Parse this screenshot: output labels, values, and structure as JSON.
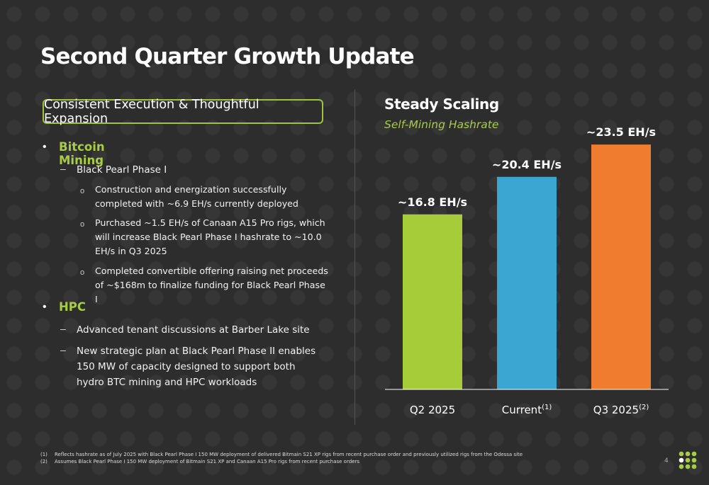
{
  "slide": {
    "title": "Second Quarter Growth Update",
    "section_heading": "Consistent Execution & Thoughtful Expansion",
    "page_number": "4"
  },
  "left_column": {
    "groups": [
      {
        "heading": "Bitcoin Mining",
        "items": [
          {
            "label": "Black Pearl Phase I",
            "subitems": [
              "Construction and energization successfully completed with ~6.9 EH/s currently deployed",
              "Purchased ~1.5 EH/s of Canaan A15 Pro rigs, which will increase Black Pearl Phase I hashrate to ~10.0 EH/s in Q3 2025",
              "Completed convertible offering raising net proceeds of ~$168m to finalize funding for Black Pearl Phase I"
            ]
          }
        ]
      },
      {
        "heading": "HPC",
        "items": [
          {
            "label": "Advanced tenant discussions at Barber Lake site",
            "subitems": []
          },
          {
            "label": "New strategic plan at Black Pearl Phase II enables 150 MW of capacity designed to support both hydro BTC mining and HPC workloads",
            "subitems": []
          }
        ]
      }
    ]
  },
  "chart_data": {
    "type": "bar",
    "title": "Steady Scaling",
    "subtitle": "Self-Mining Hashrate",
    "categories": [
      "Q2 2025",
      "Current",
      "Q3 2025"
    ],
    "category_footnote_marks": [
      "",
      "(1)",
      "(2)"
    ],
    "values": [
      16.8,
      20.4,
      23.5
    ],
    "data_labels": [
      "~16.8 EH/s",
      "~20.4 EH/s",
      "~23.5 EH/s"
    ],
    "colors": [
      "#a6cc39",
      "#3ba6d1",
      "#ef7c2f"
    ],
    "xlabel": "",
    "ylabel": "",
    "ylim": [
      0,
      26.5
    ],
    "grid": false,
    "legend": "none"
  },
  "footnotes": [
    {
      "mark": "(1)",
      "text": "Reflects hashrate as of July 2025 with Black Pearl Phase I 150 MW deployment of delivered Bitmain S21 XP rigs from recent purchase order and previously utilized rigs from the Odessa site"
    },
    {
      "mark": "(2)",
      "text": "Assumes Black Pearl Phase I 150 MW deployment of Bitmain S21 XP and Canaan A15 Pro rigs from recent purchase orders"
    }
  ],
  "colors": {
    "accent_green": "#a8cc44",
    "background": "#2d2d2d"
  },
  "logo": {
    "icon": "dot-grid-logo-icon"
  }
}
